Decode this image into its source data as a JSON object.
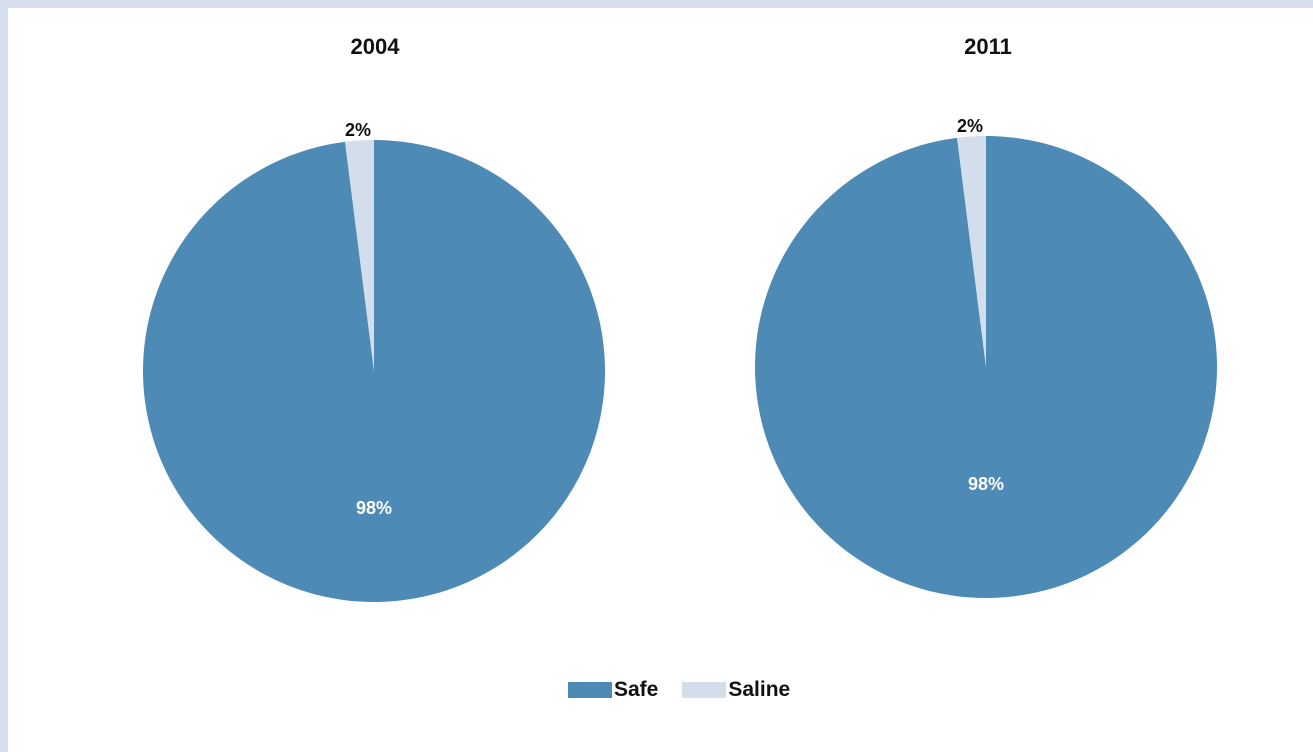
{
  "chart_data": [
    {
      "type": "pie",
      "title": "2004",
      "categories": [
        "Safe",
        "Saline"
      ],
      "values": [
        98,
        2
      ],
      "labels": [
        "98%",
        "2%"
      ],
      "start_angle_deg": 0,
      "direction": "clockwise"
    },
    {
      "type": "pie",
      "title": "2011",
      "categories": [
        "Safe",
        "Saline"
      ],
      "values": [
        98,
        2
      ],
      "labels": [
        "98%",
        "2%"
      ],
      "start_angle_deg": 0,
      "direction": "clockwise"
    }
  ],
  "legend": {
    "placement": "bottom-center",
    "items": [
      {
        "label": "Safe",
        "color": "#4e8ab6"
      },
      {
        "label": "Saline",
        "color": "#d2deeb"
      }
    ]
  },
  "colors": {
    "background": "#d6e0ec",
    "panel": "#ffffff",
    "safe": "#4e8ab6",
    "saline": "#d2deeb",
    "label_on_dark": "#ffffff",
    "label_outside": "#111111"
  }
}
